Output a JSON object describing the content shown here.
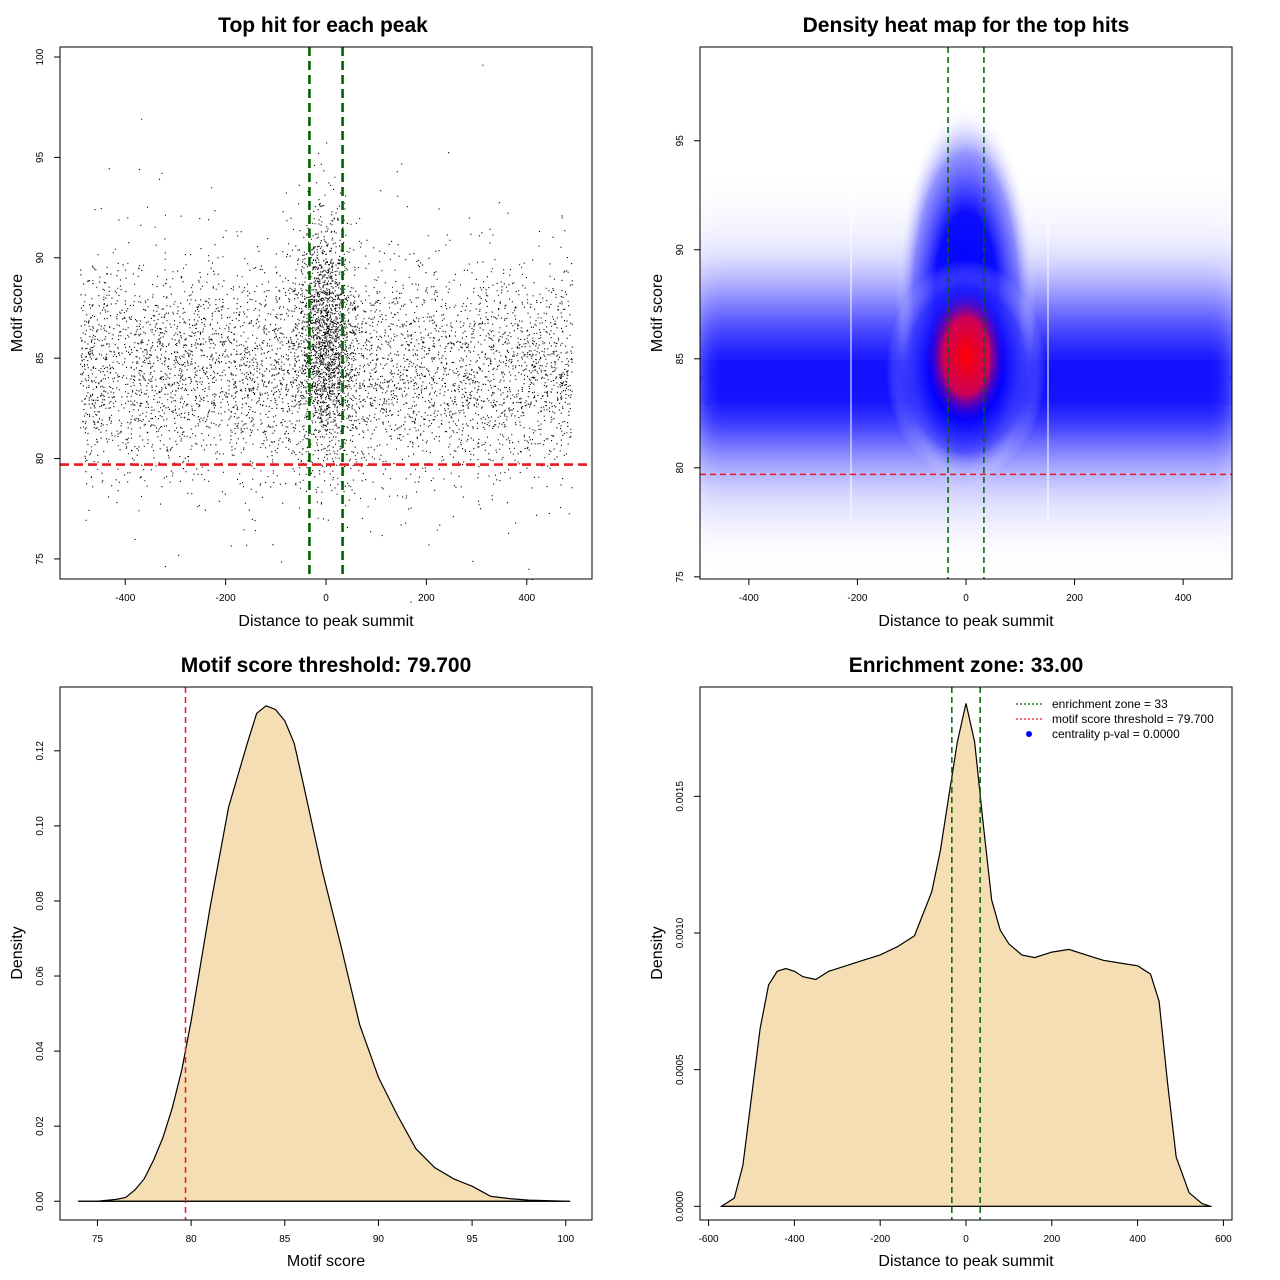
{
  "chart_data": [
    {
      "id": "scatter",
      "type": "scatter",
      "title": "Top hit for each peak",
      "xlabel": "Distance to peak summit",
      "ylabel": "Motif score",
      "xlim": [
        -530,
        530
      ],
      "ylim": [
        74,
        100.5
      ],
      "xticks": [
        -400,
        -200,
        0,
        200,
        400
      ],
      "yticks": [
        75,
        80,
        85,
        90,
        95,
        100
      ],
      "points_x_range": [
        -490,
        490
      ],
      "points_center_score": 84.5,
      "threshold": 79.7,
      "zone": [
        -33,
        33
      ],
      "line_colors": {
        "zone": "#006400",
        "threshold": "#e8191f"
      }
    },
    {
      "id": "heatmap",
      "type": "heatmap",
      "title": "Density heat map for the top hits",
      "xlabel": "Distance to peak summit",
      "ylabel": "Motif score",
      "xlim": [
        -490,
        490
      ],
      "ylim": [
        74.9,
        99.3
      ],
      "xticks": [
        -400,
        -200,
        0,
        200,
        400
      ],
      "yticks": [
        75,
        80,
        85,
        90,
        95
      ],
      "peak": [
        0,
        85.2
      ],
      "colors": [
        "#ffffff",
        "#0000ff",
        "#ff0000"
      ],
      "threshold": 79.7,
      "zone": [
        -33,
        33
      ]
    },
    {
      "id": "density-score",
      "type": "area",
      "title": "Motif score threshold: 79.700",
      "xlabel": "Motif score",
      "ylabel": "Density",
      "xlim": [
        73,
        101.4
      ],
      "ylim": [
        -0.005,
        0.137
      ],
      "xticks": [
        75,
        80,
        85,
        90,
        95,
        100
      ],
      "yticks": [
        0.0,
        0.02,
        0.04,
        0.06,
        0.08,
        0.1,
        0.12
      ],
      "ytick_labels": [
        "0.00",
        "0.02",
        "0.04",
        "0.06",
        "0.08",
        "0.10",
        "0.12"
      ],
      "x": [
        74,
        75,
        76,
        76.5,
        77,
        77.5,
        78,
        78.5,
        79,
        79.5,
        80,
        81,
        82,
        83,
        83.5,
        84,
        84.5,
        85,
        85.5,
        86,
        87,
        88,
        89,
        90,
        91,
        92,
        93,
        94,
        94.5,
        95,
        96,
        97,
        98,
        100,
        100.2
      ],
      "values": [
        0.0,
        0.0,
        0.0005,
        0.001,
        0.003,
        0.006,
        0.011,
        0.017,
        0.025,
        0.035,
        0.048,
        0.078,
        0.105,
        0.122,
        0.13,
        0.132,
        0.131,
        0.128,
        0.122,
        0.111,
        0.088,
        0.068,
        0.047,
        0.033,
        0.023,
        0.014,
        0.009,
        0.006,
        0.005,
        0.004,
        0.0013,
        0.0007,
        0.0003,
        0.0,
        0.0
      ],
      "fill": "#f5deb3",
      "threshold": 79.7,
      "threshold_color": "#e8191f"
    },
    {
      "id": "density-distance",
      "type": "area",
      "title": "Enrichment zone: 33.00",
      "xlabel": "Distance to peak summit",
      "ylabel": "Density",
      "xlim": [
        -620,
        620
      ],
      "ylim": [
        -5e-05,
        0.0019
      ],
      "xticks": [
        -600,
        -400,
        -200,
        0,
        200,
        400,
        600
      ],
      "yticks": [
        0.0,
        0.0005,
        0.001,
        0.0015
      ],
      "ytick_labels": [
        "0.0000",
        "0.0005",
        "0.0010",
        "0.0015"
      ],
      "x": [
        -570,
        -540,
        -520,
        -500,
        -480,
        -460,
        -440,
        -420,
        -400,
        -380,
        -350,
        -320,
        -280,
        -240,
        -200,
        -160,
        -120,
        -80,
        -60,
        -40,
        -20,
        0,
        20,
        40,
        60,
        80,
        100,
        130,
        160,
        200,
        240,
        280,
        320,
        360,
        400,
        430,
        450,
        470,
        490,
        520,
        550,
        570
      ],
      "values": [
        0.0,
        3e-05,
        0.00015,
        0.0004,
        0.00065,
        0.00081,
        0.00086,
        0.00087,
        0.00086,
        0.00084,
        0.00083,
        0.00086,
        0.00088,
        0.0009,
        0.00092,
        0.00095,
        0.00099,
        0.00115,
        0.0013,
        0.0015,
        0.0017,
        0.00184,
        0.0017,
        0.0014,
        0.00112,
        0.00101,
        0.00096,
        0.00092,
        0.00091,
        0.00093,
        0.00094,
        0.00092,
        0.0009,
        0.00089,
        0.00088,
        0.00085,
        0.00075,
        0.00045,
        0.00018,
        5e-05,
        1e-05,
        0.0
      ],
      "fill": "#f5deb3",
      "zone": [
        -33,
        33
      ],
      "zone_color": "#006400",
      "legend": {
        "position": "top-right",
        "entries": [
          {
            "label": "enrichment zone = 33",
            "color": "#006400",
            "style": "dotted-line"
          },
          {
            "label": "motif score threshold = 79.700",
            "color": "#e8191f",
            "style": "dotted-line"
          },
          {
            "label": "centrality p-val = 0.0000",
            "color": "#0000ff",
            "style": "point"
          }
        ]
      }
    }
  ]
}
